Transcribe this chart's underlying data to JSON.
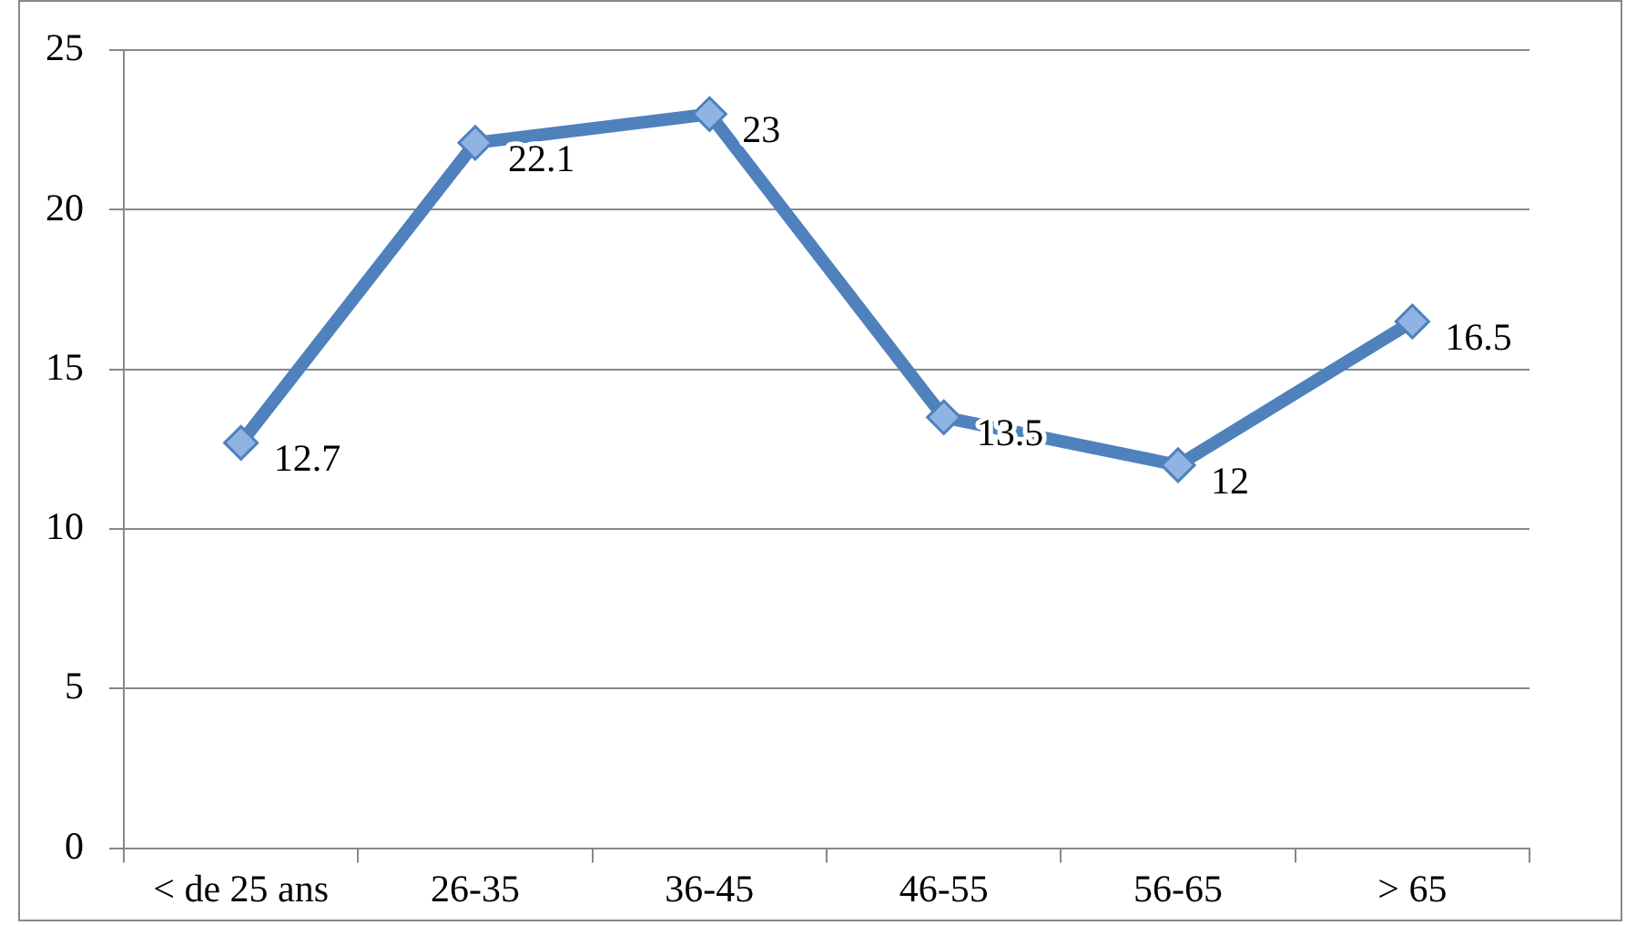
{
  "chart_data": {
    "type": "line",
    "categories": [
      "< de 25 ans",
      "26-35",
      "36-45",
      "46-55",
      "56-65",
      "> 65"
    ],
    "values": [
      12.7,
      22.1,
      23,
      13.5,
      12,
      16.5
    ],
    "color": "#4f81bd",
    "ylim": [
      0,
      25
    ],
    "yticks": [
      0,
      5,
      10,
      15,
      20,
      25
    ],
    "grid": "y",
    "marker": "diamond",
    "data_labels": true
  }
}
